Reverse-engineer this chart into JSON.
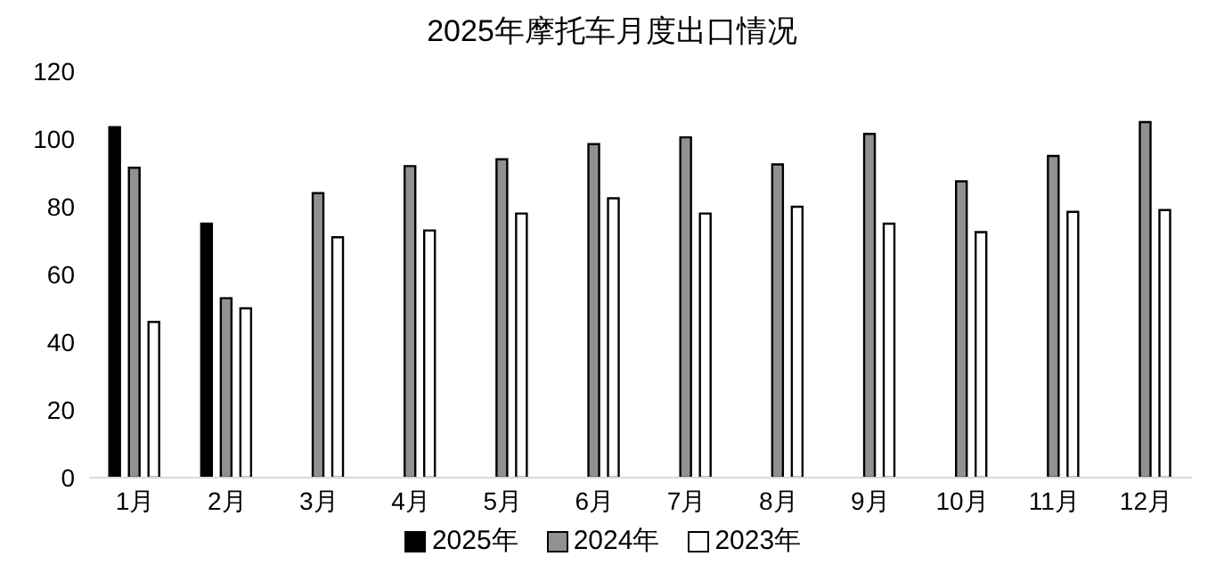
{
  "chart_data": {
    "type": "bar",
    "title": "2025年摩托车月度出口情况",
    "categories": [
      "1月",
      "2月",
      "3月",
      "4月",
      "5月",
      "6月",
      "7月",
      "8月",
      "9月",
      "10月",
      "11月",
      "12月"
    ],
    "series": [
      {
        "name": "2025年",
        "color": "#000000",
        "values": [
          103.5,
          75,
          null,
          null,
          null,
          null,
          null,
          null,
          null,
          null,
          null,
          null
        ]
      },
      {
        "name": "2024年",
        "color": "#919191",
        "values": [
          91.5,
          53,
          84,
          92,
          94,
          98.5,
          100.5,
          92.5,
          101.5,
          87.5,
          95,
          105
        ]
      },
      {
        "name": "2023年",
        "color": "#ffffff",
        "values": [
          46,
          50,
          71,
          73,
          78,
          82.5,
          78,
          80,
          75,
          72.5,
          78.5,
          79
        ]
      }
    ],
    "ylim": [
      0,
      120
    ],
    "yticks": [
      0,
      20,
      40,
      60,
      80,
      100,
      120
    ],
    "grid": false,
    "legend": "bottom"
  }
}
